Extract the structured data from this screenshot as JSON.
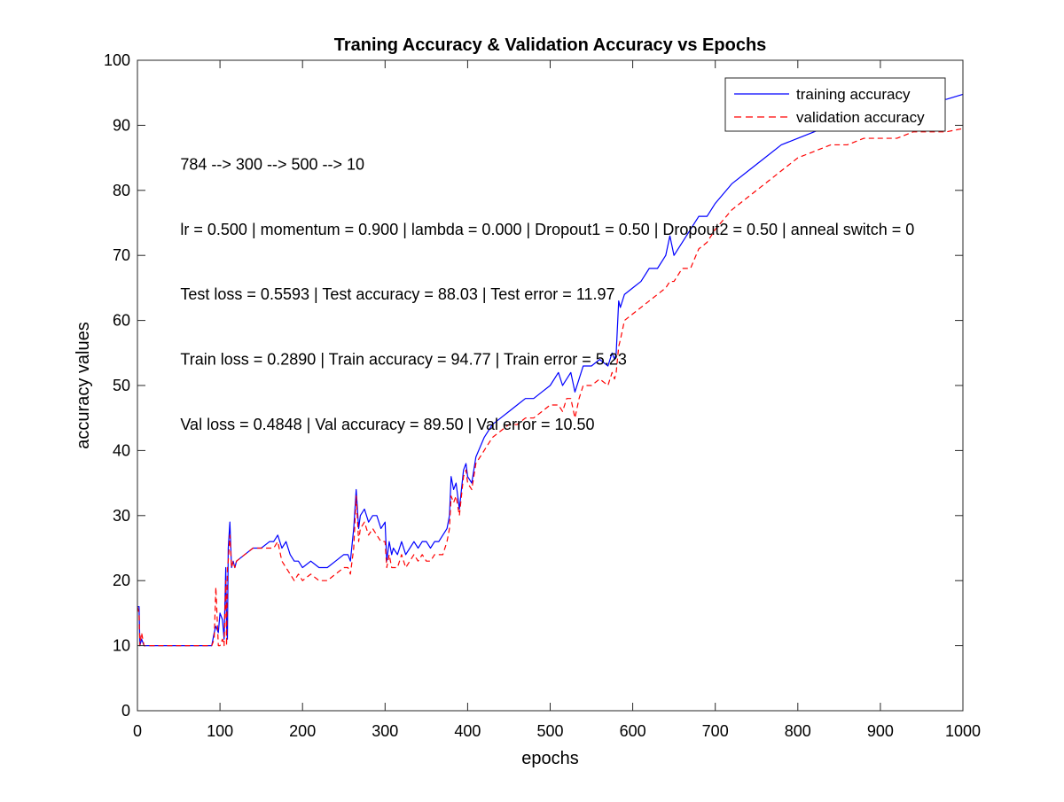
{
  "chart_data": {
    "type": "line",
    "title": "Traning Accuracy & Validation Accuracy vs Epochs",
    "xlabel": "epochs",
    "ylabel": "accuracy values",
    "xlim": [
      0,
      1000
    ],
    "ylim": [
      0,
      100
    ],
    "x_ticks": [
      0,
      100,
      200,
      300,
      400,
      500,
      600,
      700,
      800,
      900,
      1000
    ],
    "y_ticks": [
      0,
      10,
      20,
      30,
      40,
      50,
      60,
      70,
      80,
      90,
      100
    ],
    "x_tick_labels": [
      "0",
      "100",
      "200",
      "300",
      "400",
      "500",
      "600",
      "700",
      "800",
      "900",
      "1000"
    ],
    "y_tick_labels": [
      "0",
      "10",
      "20",
      "30",
      "40",
      "50",
      "60",
      "70",
      "80",
      "90",
      "100"
    ],
    "grid": false,
    "legend_position": "top-right",
    "annotations": [
      {
        "text": "784 --> 300 --> 500 --> 10",
        "x": 52,
        "y": 84
      },
      {
        "text": "lr = 0.500 | momentum = 0.900 | lambda = 0.000 | Dropout1 = 0.50 | Dropout2 = 0.50 | anneal switch = 0",
        "x": 52,
        "y": 74
      },
      {
        "text": "Test loss = 0.5593 | Test accuracy = 88.03 | Test error = 11.97",
        "x": 52,
        "y": 64
      },
      {
        "text": "Train loss = 0.2890 | Train accuracy = 94.77 | Train error = 5.23",
        "x": 52,
        "y": 54
      },
      {
        "text": "Val loss = 0.4848 | Val accuracy = 89.50 | Val error = 10.50",
        "x": 52,
        "y": 44
      }
    ],
    "series": [
      {
        "name": "training accuracy",
        "color": "#0000ff",
        "dash": "solid",
        "x": [
          0,
          2,
          3,
          5,
          8,
          10,
          20,
          40,
          60,
          80,
          90,
          93,
          95,
          98,
          100,
          103,
          105,
          107,
          108,
          109,
          110,
          112,
          114,
          116,
          118,
          120,
          130,
          140,
          150,
          160,
          165,
          170,
          175,
          180,
          185,
          190,
          195,
          200,
          210,
          220,
          230,
          240,
          250,
          255,
          258,
          262,
          265,
          268,
          270,
          275,
          280,
          285,
          290,
          295,
          300,
          302,
          305,
          308,
          310,
          315,
          320,
          325,
          330,
          335,
          340,
          345,
          350,
          355,
          360,
          365,
          370,
          375,
          378,
          380,
          383,
          386,
          390,
          395,
          398,
          400,
          405,
          410,
          420,
          430,
          440,
          450,
          460,
          470,
          480,
          490,
          500,
          510,
          515,
          520,
          525,
          530,
          535,
          540,
          550,
          560,
          570,
          575,
          578,
          580,
          583,
          585,
          590,
          600,
          610,
          620,
          630,
          640,
          645,
          650,
          660,
          670,
          680,
          690,
          700,
          720,
          740,
          760,
          780,
          800,
          820,
          840,
          860,
          880,
          900,
          920,
          940,
          960,
          980,
          1000
        ],
        "y": [
          16,
          16,
          10,
          11,
          10,
          10,
          10,
          10,
          10,
          10,
          10,
          12,
          13,
          12,
          15,
          14,
          11,
          22,
          13,
          11,
          25,
          29,
          22,
          23,
          22,
          23,
          24,
          25,
          25,
          26,
          26,
          27,
          25,
          26,
          24,
          23,
          23,
          22,
          23,
          22,
          22,
          23,
          24,
          24,
          23,
          28,
          34,
          28,
          30,
          31,
          29,
          30,
          30,
          28,
          29,
          23,
          26,
          24,
          25,
          24,
          26,
          24,
          25,
          26,
          25,
          26,
          26,
          25,
          26,
          26,
          27,
          28,
          30,
          36,
          34,
          35,
          31,
          37,
          38,
          36,
          35,
          39,
          42,
          44,
          45,
          46,
          47,
          48,
          48,
          49,
          50,
          52,
          50,
          51,
          52,
          49,
          51,
          53,
          53,
          54,
          53,
          55,
          54,
          55,
          63,
          62,
          64,
          65,
          66,
          68,
          68,
          70,
          73,
          70,
          72,
          74,
          76,
          76,
          78,
          81,
          83,
          85,
          87,
          88,
          89,
          90,
          91,
          92,
          92,
          93,
          93,
          94,
          94,
          94.77
        ]
      },
      {
        "name": "validation accuracy",
        "color": "#ff0000",
        "dash": "dashed",
        "x": [
          0,
          2,
          3,
          5,
          8,
          10,
          20,
          40,
          60,
          80,
          90,
          93,
          95,
          98,
          100,
          103,
          105,
          107,
          108,
          109,
          110,
          112,
          114,
          116,
          118,
          120,
          130,
          140,
          150,
          160,
          165,
          170,
          175,
          180,
          185,
          190,
          195,
          200,
          210,
          220,
          230,
          240,
          250,
          255,
          258,
          262,
          265,
          268,
          270,
          275,
          280,
          285,
          290,
          295,
          300,
          302,
          305,
          308,
          310,
          315,
          320,
          325,
          330,
          335,
          340,
          345,
          350,
          355,
          360,
          365,
          370,
          375,
          378,
          380,
          383,
          386,
          390,
          395,
          398,
          400,
          405,
          410,
          420,
          430,
          440,
          450,
          460,
          470,
          480,
          490,
          500,
          510,
          515,
          520,
          525,
          530,
          535,
          540,
          550,
          560,
          570,
          575,
          578,
          580,
          583,
          585,
          590,
          600,
          610,
          620,
          630,
          640,
          645,
          650,
          660,
          670,
          680,
          690,
          700,
          720,
          740,
          760,
          780,
          800,
          820,
          840,
          860,
          880,
          900,
          920,
          940,
          960,
          980,
          1000
        ],
        "y": [
          16,
          15,
          10,
          12,
          10,
          10,
          10,
          10,
          10,
          10,
          10,
          11,
          19,
          10,
          10,
          11,
          10,
          20,
          10,
          22,
          23,
          27,
          22,
          23,
          22,
          23,
          24,
          25,
          25,
          25,
          25,
          26,
          23,
          22,
          21,
          20,
          21,
          20,
          21,
          20,
          20,
          21,
          22,
          22,
          21,
          25,
          33,
          26,
          28,
          29,
          27,
          28,
          27,
          26,
          26,
          22,
          24,
          22,
          22,
          22,
          24,
          22,
          23,
          24,
          23,
          24,
          23,
          23,
          24,
          24,
          24,
          26,
          28,
          33,
          32,
          33,
          30,
          36,
          37,
          35,
          34,
          38,
          40,
          42,
          43,
          44,
          44,
          45,
          45,
          46,
          47,
          47,
          46,
          48,
          48,
          45,
          48,
          50,
          50,
          51,
          50,
          52,
          51,
          52,
          56,
          57,
          60,
          61,
          62,
          63,
          64,
          65,
          66,
          66,
          68,
          68,
          71,
          72,
          74,
          77,
          79,
          81,
          83,
          85,
          86,
          87,
          87,
          88,
          88,
          88,
          89,
          89,
          89,
          89.5
        ]
      }
    ]
  }
}
